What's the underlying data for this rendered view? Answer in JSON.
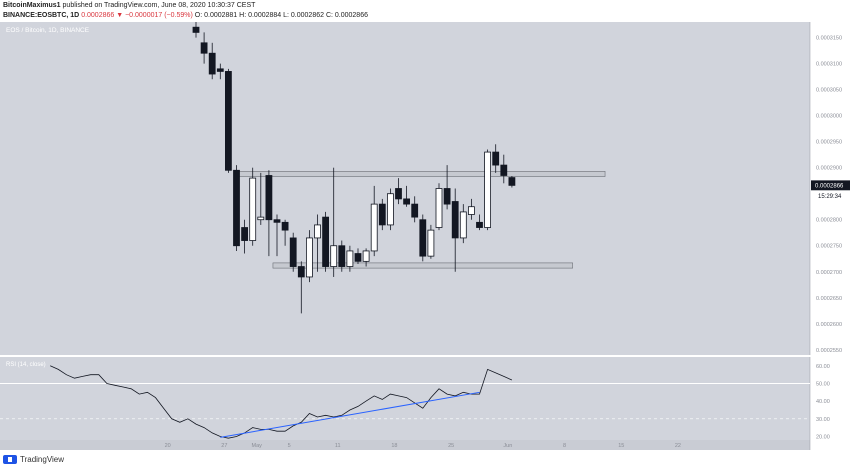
{
  "header": {
    "author": "BitcoinMaximus1",
    "published_text": "published on TradingView.com, June 08, 2020 10:30:37 CEST",
    "symbol": "BINANCE:EOSBTC, 1D",
    "change": "0.0002866 ▼ −0.0000017 (−0.59%)",
    "ohlc": "O: 0.0002881 H: 0.0002884 L: 0.0002862 C: 0.0002866"
  },
  "footer": {
    "brand": "TradingView"
  },
  "chart_data": [
    {
      "type": "candlestick",
      "title": "EOS / Bitcoin, 1D, BINANCE",
      "ylim": [
        0.000254,
        0.000318
      ],
      "yticks": [
        "0.0003150",
        "0.0003100",
        "0.0003050",
        "0.0003000",
        "0.0002950",
        "0.0002900",
        "0.0002850",
        "0.0002800",
        "0.0002750",
        "0.0002700",
        "0.0002650",
        "0.0002600",
        "0.0002550"
      ],
      "xticks": [
        {
          "label": "20",
          "index": -3.5
        },
        {
          "label": "27",
          "index": 3.5
        },
        {
          "label": "May",
          "index": 7.5
        },
        {
          "label": "5",
          "index": 11.5
        },
        {
          "label": "11",
          "index": 17.5
        },
        {
          "label": "18",
          "index": 24.5
        },
        {
          "label": "25",
          "index": 31.5
        },
        {
          "label": "Jun",
          "index": 38.5
        },
        {
          "label": "8",
          "index": 45.5
        },
        {
          "label": "15",
          "index": 52.5
        },
        {
          "label": "22",
          "index": 59.5
        }
      ],
      "last_price_label": "0.0002866",
      "countdown_label": "15:29:34",
      "zones": [
        {
          "from_index": 5,
          "to_index": 50.5,
          "low": 0.0002883,
          "high": 0.0002893
        },
        {
          "from_index": 9.5,
          "to_index": 46.5,
          "low": 0.0002707,
          "high": 0.0002717
        }
      ],
      "candles": [
        {
          "o": 0.000317,
          "h": 0.000318,
          "l": 0.000315,
          "c": 0.000316
        },
        {
          "o": 0.000314,
          "h": 0.000316,
          "l": 0.00031,
          "c": 0.000312
        },
        {
          "o": 0.000312,
          "h": 0.000314,
          "l": 0.000307,
          "c": 0.000308
        },
        {
          "o": 0.000309,
          "h": 0.00031,
          "l": 0.000307,
          "c": 0.0003085
        },
        {
          "o": 0.0003085,
          "h": 0.000309,
          "l": 0.000289,
          "c": 0.0002895
        },
        {
          "o": 0.0002895,
          "h": 0.0002905,
          "l": 0.000274,
          "c": 0.000275
        },
        {
          "o": 0.0002785,
          "h": 0.00028,
          "l": 0.0002735,
          "c": 0.000276
        },
        {
          "o": 0.000276,
          "h": 0.00029,
          "l": 0.000275,
          "c": 0.000288
        },
        {
          "o": 0.00028,
          "h": 0.000289,
          "l": 0.000279,
          "c": 0.0002805
        },
        {
          "o": 0.0002885,
          "h": 0.0002895,
          "l": 0.000273,
          "c": 0.00028
        },
        {
          "o": 0.00028,
          "h": 0.000281,
          "l": 0.000273,
          "c": 0.0002795
        },
        {
          "o": 0.0002795,
          "h": 0.00028,
          "l": 0.000275,
          "c": 0.000278
        },
        {
          "o": 0.0002765,
          "h": 0.0002775,
          "l": 0.00027,
          "c": 0.000271
        },
        {
          "o": 0.000271,
          "h": 0.000272,
          "l": 0.000262,
          "c": 0.000269
        },
        {
          "o": 0.000269,
          "h": 0.000278,
          "l": 0.000268,
          "c": 0.0002765
        },
        {
          "o": 0.0002765,
          "h": 0.000281,
          "l": 0.00027,
          "c": 0.000279
        },
        {
          "o": 0.0002805,
          "h": 0.0002815,
          "l": 0.00027,
          "c": 0.000271
        },
        {
          "o": 0.000271,
          "h": 0.00029,
          "l": 0.000269,
          "c": 0.000275
        },
        {
          "o": 0.000275,
          "h": 0.000276,
          "l": 0.00027,
          "c": 0.000271
        },
        {
          "o": 0.000271,
          "h": 0.000275,
          "l": 0.00027,
          "c": 0.000274
        },
        {
          "o": 0.0002735,
          "h": 0.0002745,
          "l": 0.0002715,
          "c": 0.000272
        },
        {
          "o": 0.000272,
          "h": 0.0002745,
          "l": 0.000271,
          "c": 0.000274
        },
        {
          "o": 0.000274,
          "h": 0.0002865,
          "l": 0.000273,
          "c": 0.000283
        },
        {
          "o": 0.000283,
          "h": 0.000284,
          "l": 0.000278,
          "c": 0.000279
        },
        {
          "o": 0.000279,
          "h": 0.000286,
          "l": 0.000278,
          "c": 0.000285
        },
        {
          "o": 0.000286,
          "h": 0.000288,
          "l": 0.000283,
          "c": 0.000284
        },
        {
          "o": 0.000284,
          "h": 0.0002865,
          "l": 0.0002825,
          "c": 0.000283
        },
        {
          "o": 0.000283,
          "h": 0.0002845,
          "l": 0.0002795,
          "c": 0.0002805
        },
        {
          "o": 0.00028,
          "h": 0.000281,
          "l": 0.000272,
          "c": 0.000273
        },
        {
          "o": 0.000273,
          "h": 0.000279,
          "l": 0.0002725,
          "c": 0.000278
        },
        {
          "o": 0.0002785,
          "h": 0.000287,
          "l": 0.000278,
          "c": 0.000286
        },
        {
          "o": 0.000286,
          "h": 0.0002905,
          "l": 0.000282,
          "c": 0.000283
        },
        {
          "o": 0.0002835,
          "h": 0.000286,
          "l": 0.00027,
          "c": 0.0002765
        },
        {
          "o": 0.0002765,
          "h": 0.000283,
          "l": 0.0002755,
          "c": 0.0002815
        },
        {
          "o": 0.000281,
          "h": 0.000284,
          "l": 0.00028,
          "c": 0.0002825
        },
        {
          "o": 0.0002795,
          "h": 0.000281,
          "l": 0.000278,
          "c": 0.0002785
        },
        {
          "o": 0.0002785,
          "h": 0.0002935,
          "l": 0.000278,
          "c": 0.000293
        },
        {
          "o": 0.000293,
          "h": 0.0002945,
          "l": 0.000289,
          "c": 0.0002905
        },
        {
          "o": 0.0002905,
          "h": 0.0002925,
          "l": 0.000287,
          "c": 0.0002885
        },
        {
          "o": 0.0002881,
          "h": 0.0002884,
          "l": 0.0002862,
          "c": 0.0002866
        }
      ],
      "rsi": {
        "label": "RSI (14, close)",
        "yticks": [
          "60.00",
          "50.00",
          "40.00",
          "30.00",
          "20.00"
        ],
        "ylim": [
          18,
          65
        ],
        "levels": [
          50,
          30
        ],
        "values": [
          60,
          58,
          55,
          53,
          54,
          55,
          55,
          50,
          49,
          48,
          47,
          44,
          45,
          42,
          36,
          30,
          28,
          30,
          27,
          25,
          22,
          20,
          19,
          20,
          22,
          25,
          24,
          24,
          23,
          23,
          26,
          28,
          33,
          31,
          32,
          31,
          32,
          35,
          37,
          40,
          43,
          41,
          44,
          43,
          42,
          39,
          36,
          42,
          47,
          44,
          43,
          45,
          44,
          44,
          58,
          56,
          54,
          52
        ],
        "trendline": [
          {
            "index": 21,
            "value": 19.5
          },
          {
            "index": 53,
            "value": 45
          }
        ]
      }
    }
  ]
}
